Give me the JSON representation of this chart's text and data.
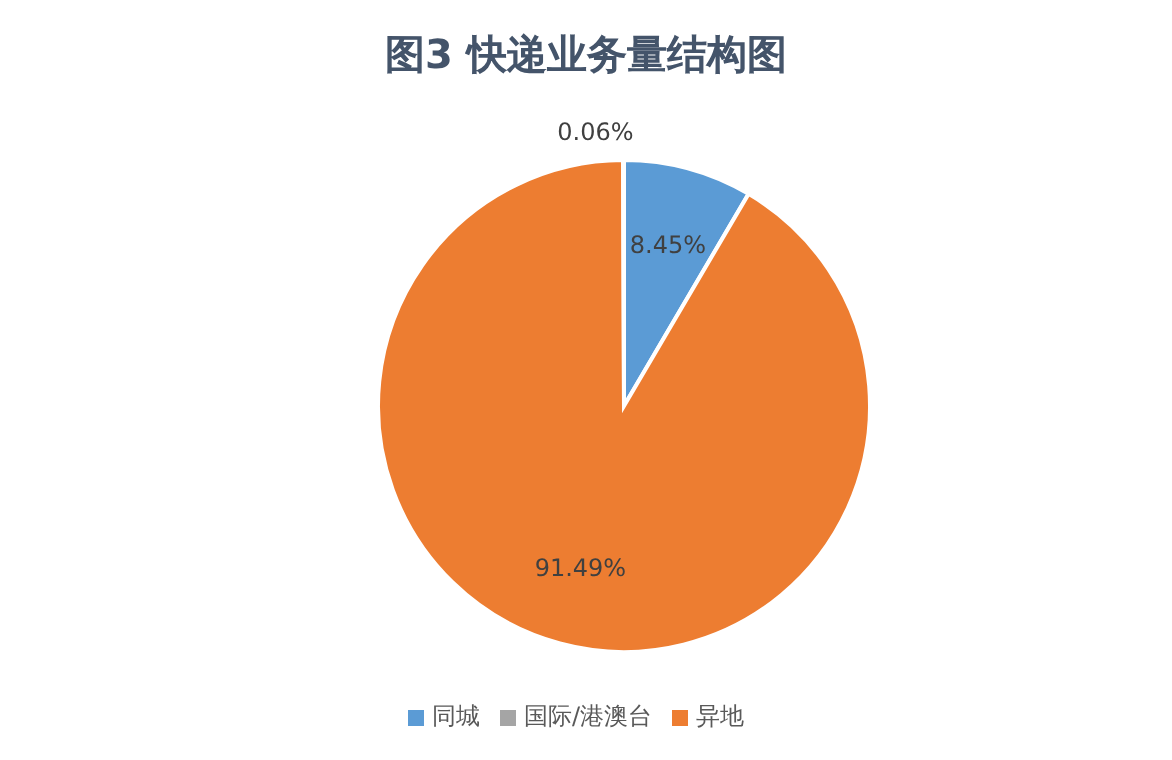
{
  "chart_data": {
    "type": "pie",
    "title": "图3 快递业务量结构图",
    "categories": [
      "同城",
      "异地",
      "国际/港澳台"
    ],
    "values": [
      8.45,
      91.49,
      0.06
    ],
    "colors": [
      "#5b9bd5",
      "#ed7d31",
      "#a5a5a5"
    ],
    "value_labels": [
      "8.45%",
      "91.49%",
      "0.06%"
    ],
    "legend": "bottom"
  }
}
